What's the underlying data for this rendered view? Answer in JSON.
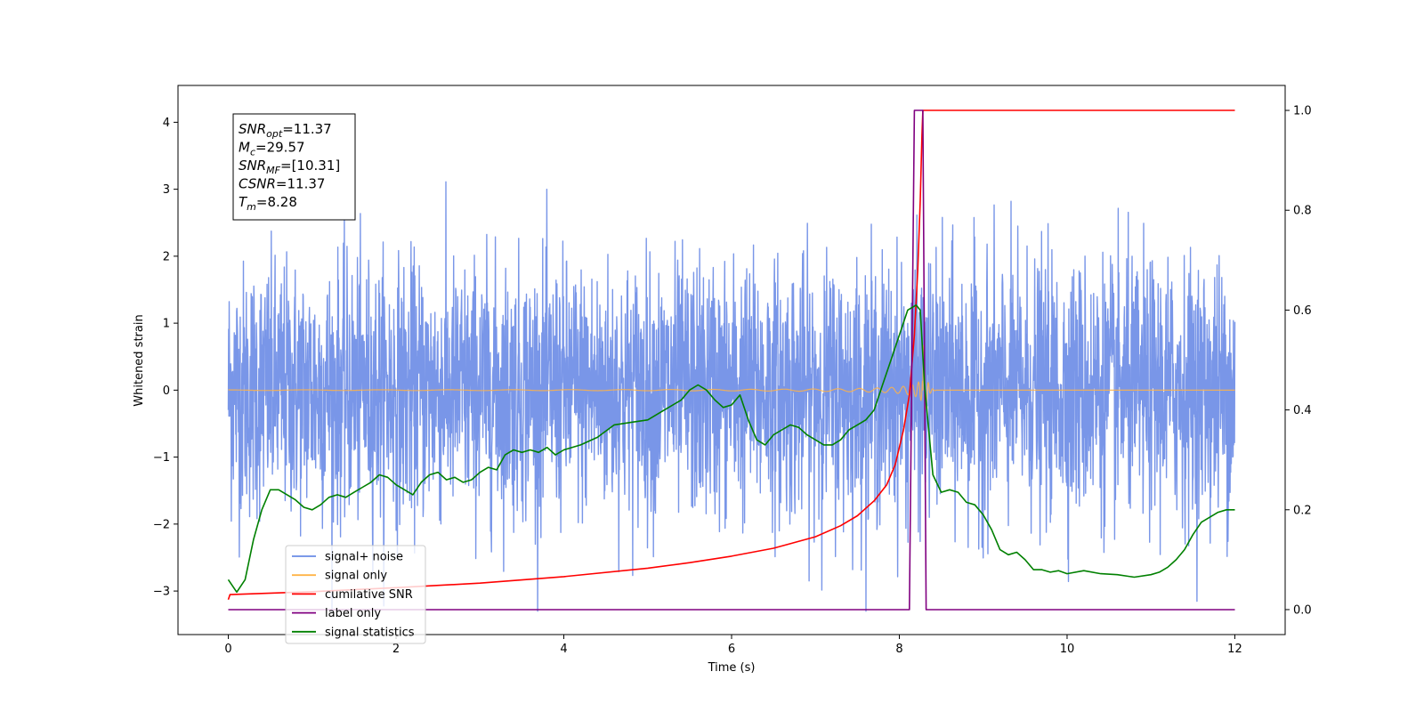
{
  "chart_data": {
    "type": "line",
    "title": "",
    "xlabel": "Time (s)",
    "ylabel": "Whitened strain",
    "xlim": [
      -0.6,
      12.6
    ],
    "ylim": [
      -3.65,
      4.55
    ],
    "y2lim": [
      -0.05,
      1.05
    ],
    "xticks": [
      0,
      2,
      4,
      6,
      8,
      10,
      12
    ],
    "yticks": [
      -3,
      -2,
      -1,
      0,
      1,
      2,
      3,
      4
    ],
    "y2ticks": [
      0.0,
      0.2,
      0.4,
      0.6,
      0.8,
      1.0
    ],
    "grid": false,
    "legend_position": "lower-left",
    "colors": {
      "noise": "#6a8be6",
      "signal": "#ffb347",
      "cumulative": "#ff0000",
      "label": "#800080",
      "statistics": "#008000"
    },
    "annotation": {
      "lines": [
        {
          "var": "SNR",
          "sub": "opt",
          "value": "=11.37"
        },
        {
          "var": "M",
          "sub": "c",
          "value": "=29.57"
        },
        {
          "var": "SNR",
          "sub": "MF",
          "value": "=[10.31]"
        },
        {
          "var": "CSNR",
          "sub": "",
          "value": "=11.37"
        },
        {
          "var": "T",
          "sub": "m",
          "value": "=8.28"
        }
      ]
    },
    "series": [
      {
        "name": "signal+ noise",
        "axis": "left",
        "style": "noise",
        "t_range": [
          0,
          12
        ],
        "amplitude_rms": 0.95,
        "max": 4.2,
        "min": -3.3
      },
      {
        "name": "signal only",
        "axis": "left",
        "style": "chirp",
        "t_range": [
          0,
          12
        ],
        "merger_time": 8.28,
        "peak_amplitude": 1.0
      },
      {
        "name": "cumilative SNR",
        "axis": "right",
        "x": [
          0.0,
          0.02,
          1.0,
          2.0,
          3.0,
          4.0,
          5.0,
          5.5,
          6.0,
          6.5,
          7.0,
          7.3,
          7.5,
          7.7,
          7.85,
          7.95,
          8.05,
          8.12,
          8.18,
          8.22,
          8.25,
          8.27,
          8.28,
          8.3,
          9.0,
          10.0,
          11.0,
          12.0
        ],
        "values": [
          0.02,
          0.03,
          0.036,
          0.044,
          0.053,
          0.066,
          0.083,
          0.094,
          0.107,
          0.123,
          0.146,
          0.168,
          0.188,
          0.218,
          0.25,
          0.29,
          0.36,
          0.43,
          0.55,
          0.68,
          0.82,
          0.95,
          1.0,
          1.0,
          1.0,
          1.0,
          1.0,
          1.0
        ]
      },
      {
        "name": "label only",
        "axis": "right",
        "x": [
          0.0,
          8.12,
          8.18,
          8.28,
          8.32,
          12.0
        ],
        "values": [
          0.0,
          0.0,
          1.0,
          1.0,
          0.0,
          0.0
        ]
      },
      {
        "name": "signal statistics",
        "axis": "right",
        "x": [
          0.0,
          0.1,
          0.2,
          0.3,
          0.4,
          0.5,
          0.6,
          0.7,
          0.8,
          0.9,
          1.0,
          1.1,
          1.2,
          1.3,
          1.4,
          1.5,
          1.6,
          1.7,
          1.8,
          1.9,
          2.0,
          2.1,
          2.2,
          2.3,
          2.4,
          2.5,
          2.6,
          2.7,
          2.8,
          2.9,
          3.0,
          3.1,
          3.2,
          3.3,
          3.4,
          3.5,
          3.6,
          3.7,
          3.8,
          3.9,
          4.0,
          4.2,
          4.4,
          4.6,
          4.8,
          5.0,
          5.2,
          5.4,
          5.5,
          5.6,
          5.7,
          5.8,
          5.9,
          6.0,
          6.1,
          6.2,
          6.3,
          6.4,
          6.5,
          6.6,
          6.7,
          6.8,
          6.9,
          7.0,
          7.1,
          7.2,
          7.3,
          7.4,
          7.5,
          7.6,
          7.7,
          7.8,
          7.9,
          8.0,
          8.1,
          8.2,
          8.25,
          8.3,
          8.4,
          8.5,
          8.6,
          8.7,
          8.8,
          8.9,
          9.0,
          9.1,
          9.2,
          9.3,
          9.4,
          9.5,
          9.6,
          9.7,
          9.8,
          9.9,
          10.0,
          10.2,
          10.4,
          10.6,
          10.8,
          11.0,
          11.1,
          11.2,
          11.3,
          11.4,
          11.5,
          11.6,
          11.7,
          11.8,
          11.9,
          12.0
        ],
        "values": [
          0.06,
          0.035,
          0.06,
          0.14,
          0.2,
          0.24,
          0.24,
          0.23,
          0.22,
          0.205,
          0.2,
          0.21,
          0.225,
          0.23,
          0.225,
          0.235,
          0.245,
          0.255,
          0.27,
          0.265,
          0.25,
          0.24,
          0.23,
          0.255,
          0.27,
          0.275,
          0.26,
          0.265,
          0.255,
          0.26,
          0.275,
          0.285,
          0.28,
          0.31,
          0.32,
          0.315,
          0.32,
          0.315,
          0.325,
          0.31,
          0.32,
          0.33,
          0.345,
          0.37,
          0.375,
          0.38,
          0.4,
          0.42,
          0.44,
          0.45,
          0.44,
          0.42,
          0.405,
          0.41,
          0.43,
          0.38,
          0.34,
          0.33,
          0.35,
          0.36,
          0.37,
          0.365,
          0.35,
          0.34,
          0.33,
          0.33,
          0.34,
          0.36,
          0.37,
          0.38,
          0.4,
          0.45,
          0.5,
          0.55,
          0.6,
          0.61,
          0.6,
          0.45,
          0.27,
          0.235,
          0.24,
          0.235,
          0.215,
          0.21,
          0.19,
          0.16,
          0.12,
          0.11,
          0.115,
          0.1,
          0.08,
          0.08,
          0.075,
          0.078,
          0.072,
          0.078,
          0.072,
          0.07,
          0.065,
          0.07,
          0.075,
          0.085,
          0.1,
          0.12,
          0.15,
          0.175,
          0.185,
          0.195,
          0.2,
          0.2
        ]
      }
    ]
  }
}
